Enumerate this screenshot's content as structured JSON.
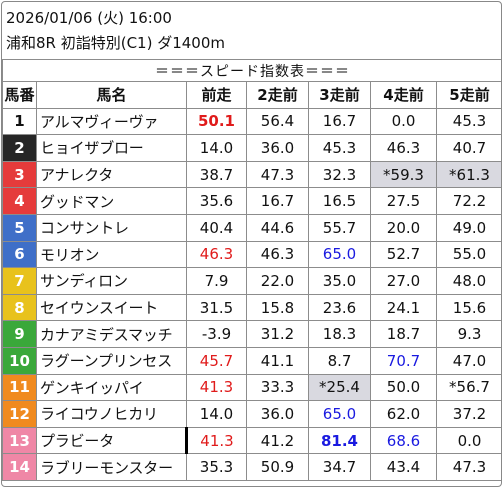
{
  "header": {
    "line1": "2026/01/06 (火) 16:00",
    "line2": "浦和8R 初詣特別(C1) ダ1400m"
  },
  "table_title": "＝＝＝スピード指数表＝＝＝",
  "columns": [
    "馬番",
    "馬名",
    "前走",
    "2走前",
    "3走前",
    "4走前",
    "5走前"
  ],
  "colors": {
    "red": "#e01b1b",
    "blue": "#1a1ae0",
    "highlight_bg": "#d9d9e0"
  },
  "rows": [
    {
      "num": "1",
      "num_bg": "#ffffff",
      "num_color": "#111111",
      "name": "アルマヴィーヴァ",
      "vals": [
        "50.1",
        "56.4",
        "16.7",
        "0.0",
        "45.3"
      ],
      "styles": [
        "red bold",
        "",
        "",
        "",
        ""
      ]
    },
    {
      "num": "2",
      "num_bg": "#262626",
      "num_color": "#ffffff",
      "name": "ヒョイザブロー",
      "vals": [
        "14.0",
        "36.0",
        "45.3",
        "46.3",
        "40.7"
      ],
      "styles": [
        "",
        "",
        "",
        "",
        ""
      ]
    },
    {
      "num": "3",
      "num_bg": "#e53b3b",
      "num_color": "#ffffff",
      "name": "アナレクタ",
      "vals": [
        "38.7",
        "47.3",
        "32.3",
        "*59.3",
        "*61.3"
      ],
      "styles": [
        "",
        "",
        "",
        "gray",
        "gray"
      ]
    },
    {
      "num": "4",
      "num_bg": "#e53b3b",
      "num_color": "#ffffff",
      "name": "グッドマン",
      "vals": [
        "35.6",
        "16.7",
        "16.5",
        "27.5",
        "72.2"
      ],
      "styles": [
        "",
        "",
        "",
        "",
        ""
      ]
    },
    {
      "num": "5",
      "num_bg": "#3f6fc8",
      "num_color": "#ffffff",
      "name": "コンサントレ",
      "vals": [
        "40.4",
        "44.6",
        "55.7",
        "20.0",
        "49.0"
      ],
      "styles": [
        "",
        "",
        "",
        "",
        ""
      ]
    },
    {
      "num": "6",
      "num_bg": "#3f6fc8",
      "num_color": "#ffffff",
      "name": "モリオン",
      "vals": [
        "46.3",
        "46.3",
        "65.0",
        "52.7",
        "55.0"
      ],
      "styles": [
        "red",
        "",
        "blue",
        "",
        ""
      ]
    },
    {
      "num": "7",
      "num_bg": "#e8c21c",
      "num_color": "#ffffff",
      "name": "サンディロン",
      "vals": [
        "7.9",
        "22.0",
        "35.0",
        "27.0",
        "48.0"
      ],
      "styles": [
        "",
        "",
        "",
        "",
        ""
      ]
    },
    {
      "num": "8",
      "num_bg": "#e8c21c",
      "num_color": "#ffffff",
      "name": "セイウンスイート",
      "vals": [
        "31.5",
        "15.8",
        "23.6",
        "24.1",
        "15.6"
      ],
      "styles": [
        "",
        "",
        "",
        "",
        ""
      ]
    },
    {
      "num": "9",
      "num_bg": "#3aa83a",
      "num_color": "#ffffff",
      "name": "カナアミデスマッチ",
      "vals": [
        "-3.9",
        "31.2",
        "18.3",
        "18.7",
        "9.3"
      ],
      "styles": [
        "",
        "",
        "",
        "",
        ""
      ]
    },
    {
      "num": "10",
      "num_bg": "#3aa83a",
      "num_color": "#ffffff",
      "name": "ラグーンプリンセス",
      "vals": [
        "45.7",
        "41.1",
        "8.7",
        "70.7",
        "47.0"
      ],
      "styles": [
        "red",
        "",
        "",
        "blue",
        ""
      ]
    },
    {
      "num": "11",
      "num_bg": "#f08a1e",
      "num_color": "#ffffff",
      "name": "ゲンキイッパイ",
      "vals": [
        "41.3",
        "33.3",
        "*25.4",
        "50.0",
        "*56.7"
      ],
      "styles": [
        "red",
        "",
        "gray",
        "",
        ""
      ]
    },
    {
      "num": "12",
      "num_bg": "#f08a1e",
      "num_color": "#ffffff",
      "name": "ライコウノヒカリ",
      "vals": [
        "14.0",
        "36.0",
        "65.0",
        "62.0",
        "37.2"
      ],
      "styles": [
        "",
        "",
        "blue",
        "",
        ""
      ]
    },
    {
      "num": "13",
      "num_bg": "#ef87a6",
      "num_color": "#ffffff",
      "name": "プラビータ",
      "vals": [
        "41.3",
        "41.2",
        "81.4",
        "68.6",
        "0.0"
      ],
      "styles": [
        "red bar",
        "",
        "blue bold",
        "blue",
        ""
      ]
    },
    {
      "num": "14",
      "num_bg": "#ef87a6",
      "num_color": "#ffffff",
      "name": "ラブリーモンスター",
      "vals": [
        "35.3",
        "50.9",
        "34.7",
        "43.4",
        "47.3"
      ],
      "styles": [
        "",
        "",
        "",
        "",
        ""
      ]
    }
  ]
}
